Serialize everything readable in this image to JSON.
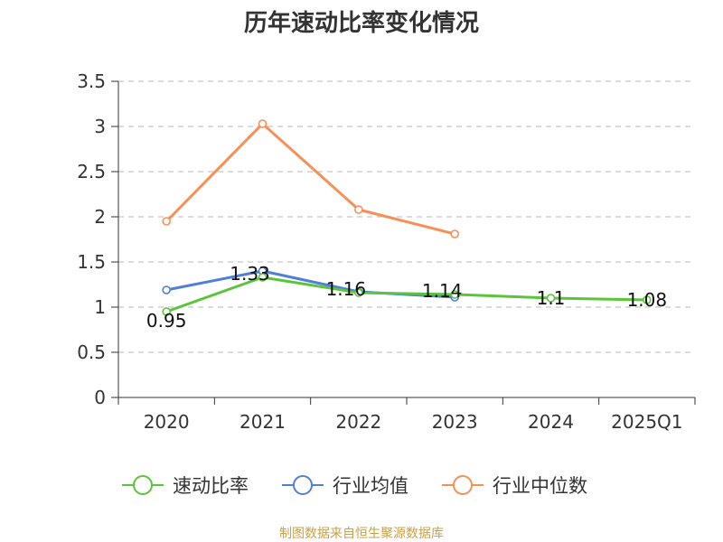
{
  "chart_data": {
    "type": "line",
    "title": "历年速动比率变化情况",
    "categories": [
      "2020",
      "2021",
      "2022",
      "2023",
      "2024",
      "2025Q1"
    ],
    "ylim": [
      0,
      3.5
    ],
    "yticks": [
      "0",
      "0.5",
      "1",
      "1.5",
      "2",
      "2.5",
      "3",
      "3.5"
    ],
    "grid": true,
    "legend_position": "bottom",
    "series": [
      {
        "name": "速动比率",
        "color": "#5ac43b",
        "values": [
          0.95,
          1.33,
          1.16,
          1.14,
          1.1,
          1.08
        ],
        "labels": [
          "0.95",
          "1.33",
          "1.16",
          "1.14",
          "1.1",
          "1.08"
        ]
      },
      {
        "name": "行业均值",
        "color": "#4f7fd6",
        "values": [
          1.19,
          1.4,
          1.17,
          1.11,
          null,
          null
        ]
      },
      {
        "name": "行业中位数",
        "color": "#f79057",
        "values": [
          1.95,
          3.03,
          2.08,
          1.81,
          null,
          null
        ]
      }
    ]
  },
  "source": "制图数据来自恒生聚源数据库"
}
